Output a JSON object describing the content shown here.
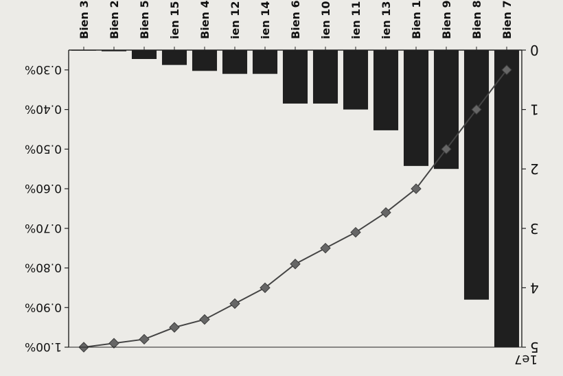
{
  "chart_data": {
    "type": "bar",
    "orientation": "rotated-180",
    "categories": [
      "Bien 7",
      "Bien 8",
      "Bien 9",
      "Bien 1",
      "ien 13",
      "ien 11",
      "ien 10",
      "Bien 6",
      "ien 14",
      "ien 12",
      "Bien 4",
      "ien 15",
      "Bien 5",
      "Bien 2",
      "Bien 3"
    ],
    "series": [
      {
        "kind": "bar",
        "values": [
          5.0,
          4.2,
          2.0,
          1.95,
          1.35,
          1.0,
          0.9,
          0.9,
          0.4,
          0.4,
          0.35,
          0.25,
          0.15,
          0.02,
          0.01
        ]
      },
      {
        "kind": "line",
        "values": [
          0.3,
          0.4,
          0.5,
          0.6,
          0.66,
          0.71,
          0.75,
          0.79,
          0.85,
          0.89,
          0.93,
          0.95,
          0.98,
          0.99,
          1.0
        ]
      }
    ],
    "y_left": {
      "range": [
        0,
        5
      ],
      "ticks": [
        0,
        1,
        2,
        3,
        4,
        5
      ],
      "tick_labels": [
        "0",
        "1",
        "2",
        "3",
        "4",
        "5"
      ],
      "offset_label": "1e7"
    },
    "y_right": {
      "range": [
        0.25,
        1.0
      ],
      "ticks": [
        0.3,
        0.4,
        0.5,
        0.6,
        0.7,
        0.8,
        0.9,
        1.0
      ],
      "tick_labels": [
        "0.30%",
        "0.40%",
        "0.50%",
        "0.60%",
        "0.70%",
        "0.80%",
        "0.90%",
        "1.00%"
      ]
    },
    "colors": {
      "bar": "#1f1f1f",
      "line": "#444444",
      "marker": "#666666",
      "axis": "#222222",
      "background": "#ecebe7"
    },
    "grid": false,
    "marker": "diamond"
  }
}
